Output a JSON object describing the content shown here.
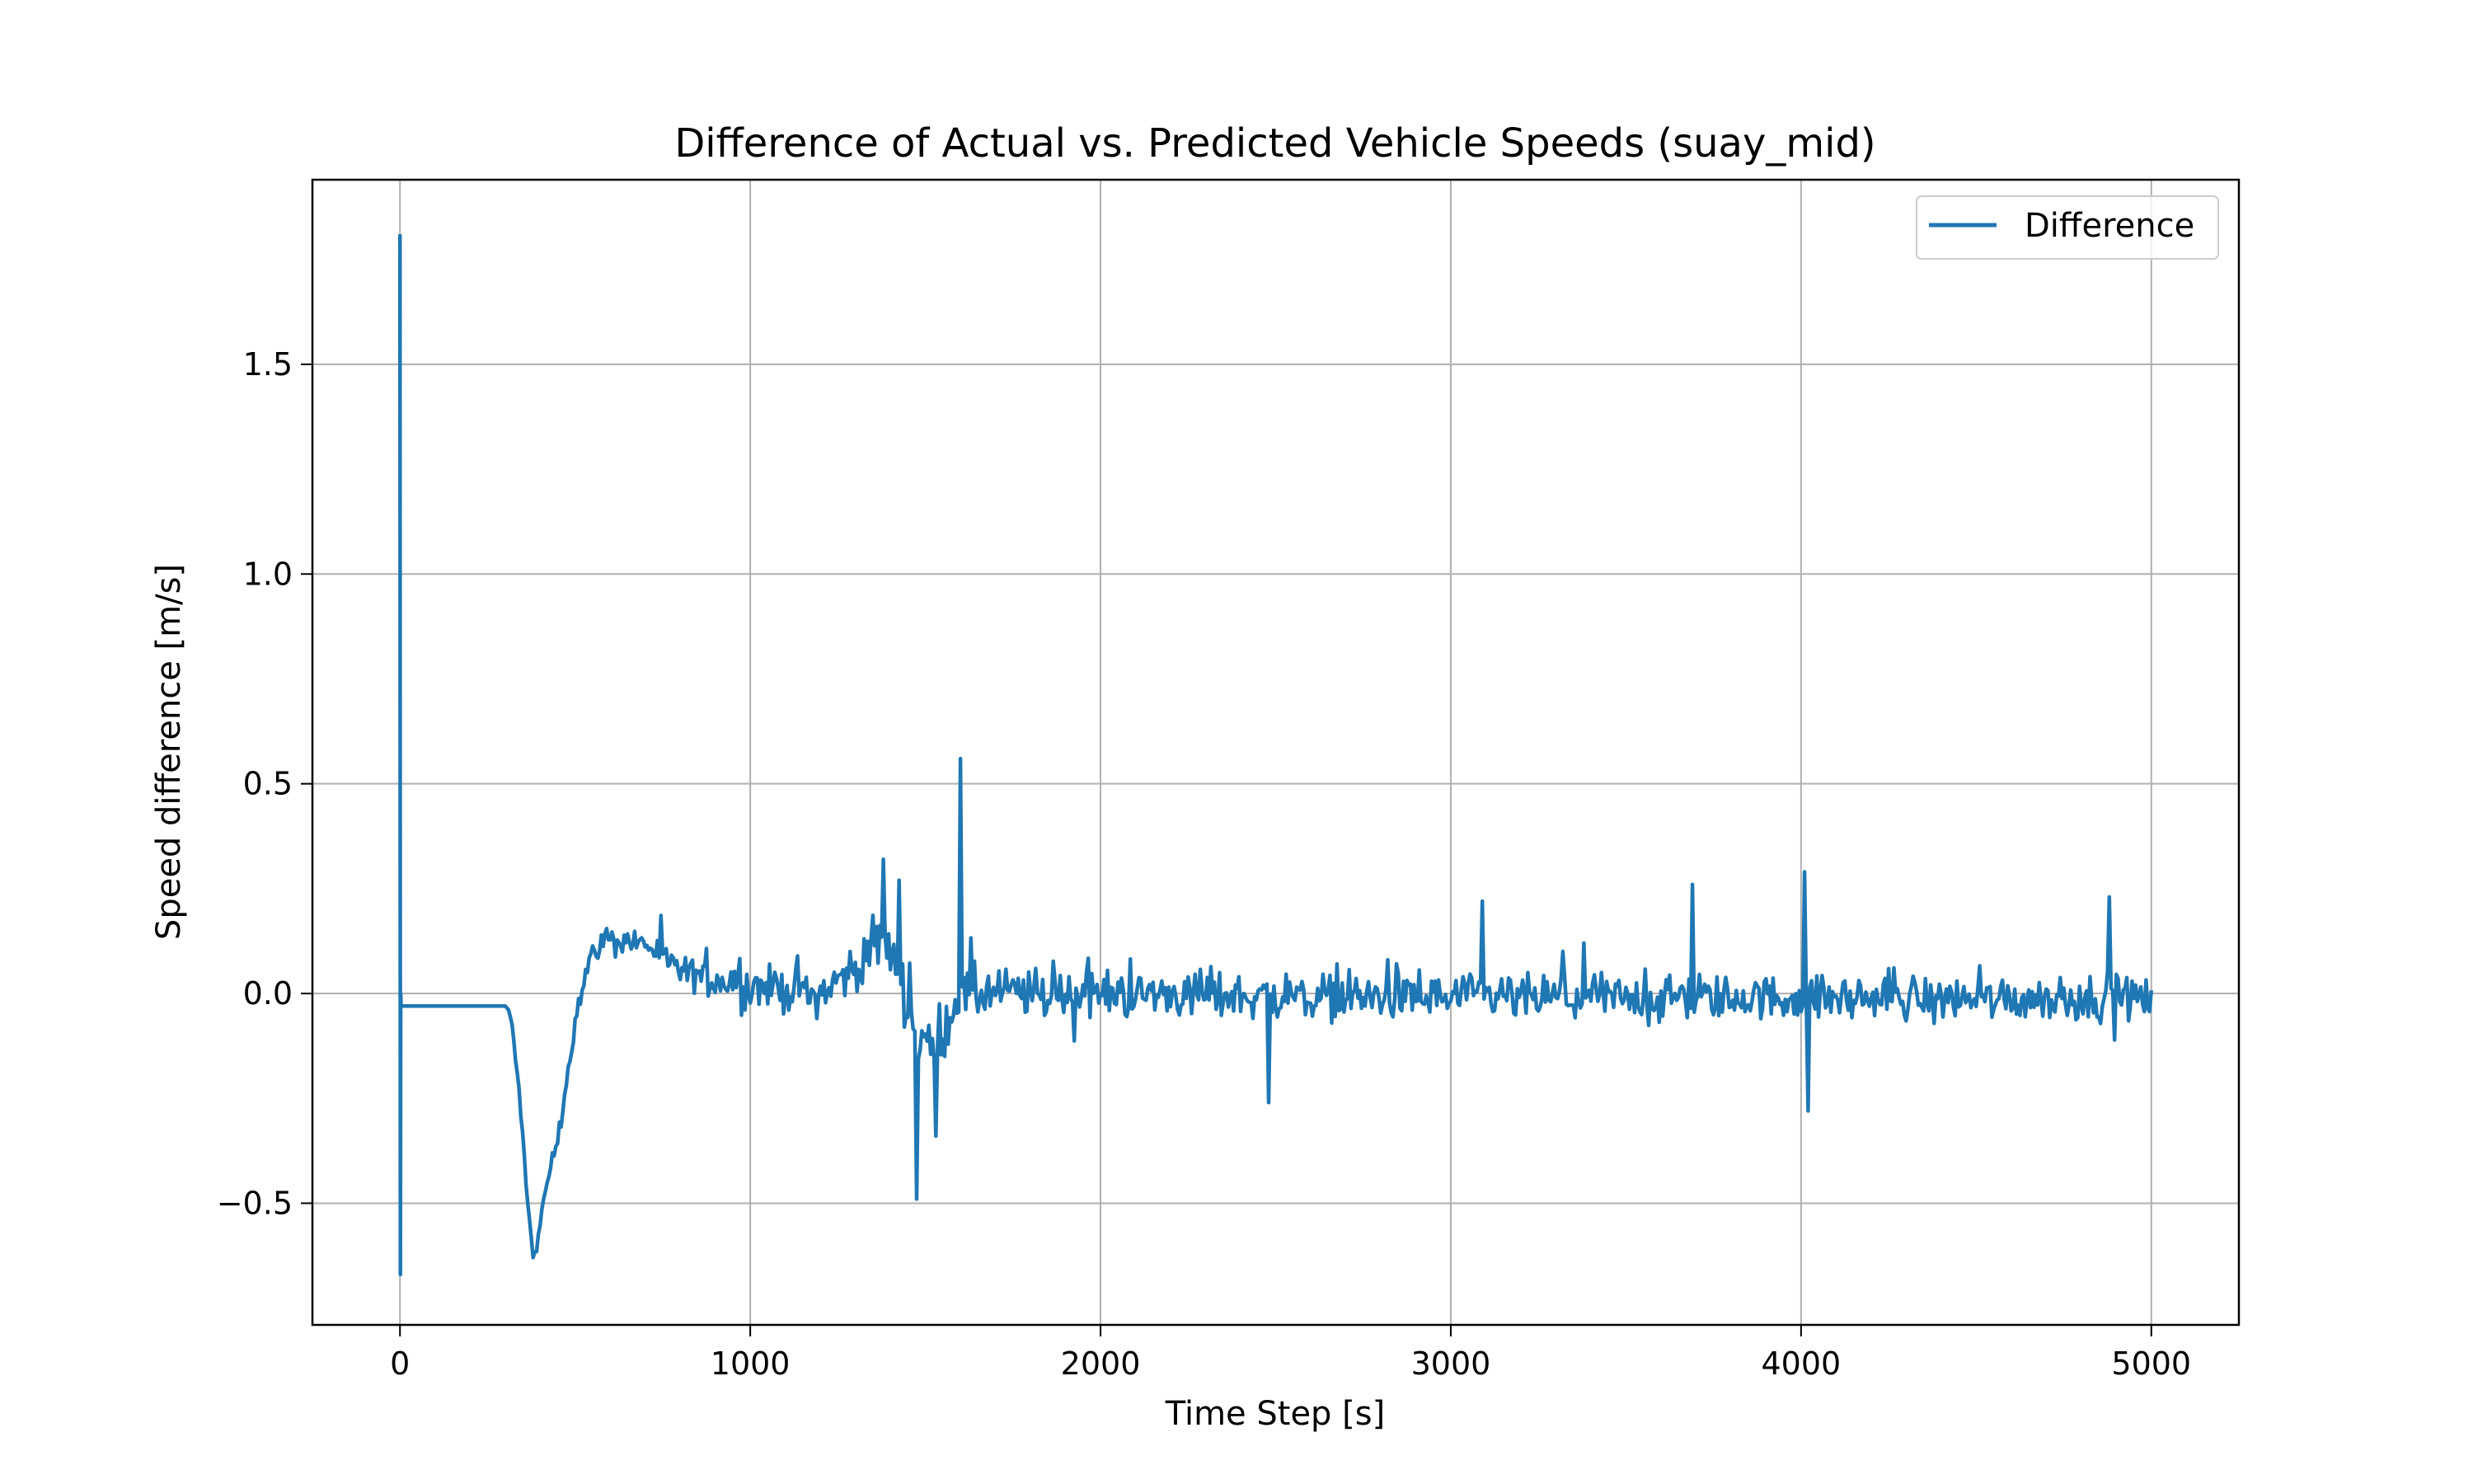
{
  "chart_data": {
    "type": "line",
    "title": "Difference of Actual vs. Predicted Vehicle Speeds (suay_mid)",
    "xlabel": "Time Step [s]",
    "ylabel": "Speed difference [m/s]",
    "xlim": [
      -250,
      5250
    ],
    "ylim": [
      -0.79,
      1.94
    ],
    "x_ticks": [
      0,
      1000,
      2000,
      3000,
      4000,
      5000
    ],
    "x_tick_labels": [
      "0",
      "1000",
      "2000",
      "3000",
      "4000",
      "5000"
    ],
    "y_ticks": [
      -0.5,
      0.0,
      0.5,
      1.0,
      1.5
    ],
    "y_tick_labels": [
      "−0.5",
      "0.0",
      "0.5",
      "1.0",
      "1.5"
    ],
    "grid": true,
    "legend": {
      "position": "top-right",
      "entries": [
        "Difference"
      ]
    },
    "series": [
      {
        "name": "Difference",
        "color": "#1f77b4",
        "profile": {
          "x": [
            0,
            1,
            2,
            3,
            300,
            310,
            320,
            340,
            360,
            380,
            400,
            420,
            440,
            460,
            480,
            500,
            540,
            580,
            620,
            700,
            800,
            1000,
            1200,
            1300,
            1360,
            1400,
            1440,
            1480,
            1520,
            1560,
            1600,
            1700,
            2000,
            3000,
            4000,
            5000
          ],
          "y": [
            1.81,
            -0.67,
            0.0,
            -0.03,
            -0.03,
            -0.04,
            -0.08,
            -0.22,
            -0.45,
            -0.64,
            -0.56,
            -0.45,
            -0.38,
            -0.3,
            -0.18,
            -0.06,
            0.08,
            0.13,
            0.13,
            0.12,
            0.05,
            0.02,
            0.0,
            0.06,
            0.12,
            0.1,
            0.02,
            -0.12,
            -0.12,
            -0.06,
            0.0,
            0.0,
            0.0,
            -0.01,
            -0.01,
            -0.01
          ]
        },
        "noise_amplitude": {
          "x": [
            0,
            300,
            320,
            560,
            700,
            1000,
            1400,
            1600,
            2000,
            5000
          ],
          "y": [
            0.0,
            0.0,
            0.02,
            0.04,
            0.05,
            0.07,
            0.09,
            0.1,
            0.08,
            0.075
          ]
        },
        "peaks": [
          {
            "x": 1380,
            "y": 0.32
          },
          {
            "x": 1425,
            "y": 0.27
          },
          {
            "x": 1475,
            "y": -0.49
          },
          {
            "x": 1530,
            "y": -0.34
          },
          {
            "x": 1600,
            "y": 0.56
          },
          {
            "x": 2480,
            "y": -0.26
          },
          {
            "x": 3090,
            "y": 0.22
          },
          {
            "x": 3690,
            "y": 0.26
          },
          {
            "x": 4010,
            "y": 0.29
          },
          {
            "x": 4020,
            "y": -0.28
          },
          {
            "x": 4880,
            "y": 0.23
          }
        ],
        "x_range": [
          0,
          5000
        ]
      }
    ]
  }
}
